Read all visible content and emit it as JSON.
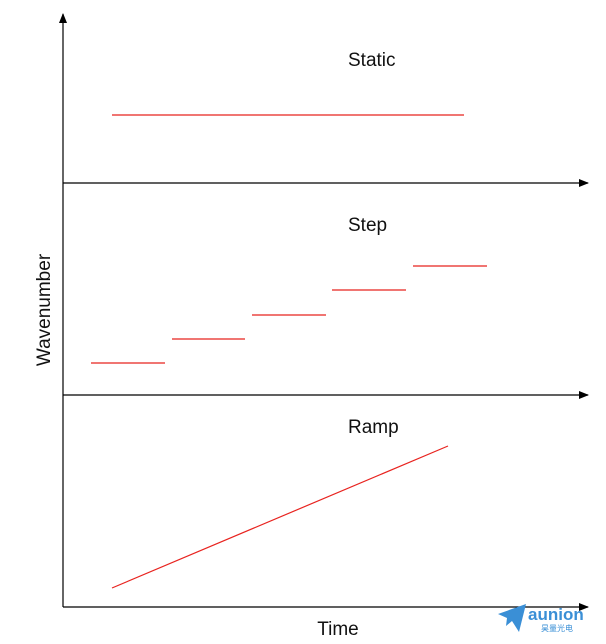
{
  "diagram": {
    "y_axis_label": "Wavenumber",
    "x_axis_label": "Time",
    "line_color": "#e8231f",
    "axis_color": "#000000",
    "panels": [
      {
        "title": "Static"
      },
      {
        "title": "Step"
      },
      {
        "title": "Ramp"
      }
    ]
  },
  "logo": {
    "name": "aunion",
    "subtitle": "昊量光电",
    "color": "#3a8fd6"
  }
}
